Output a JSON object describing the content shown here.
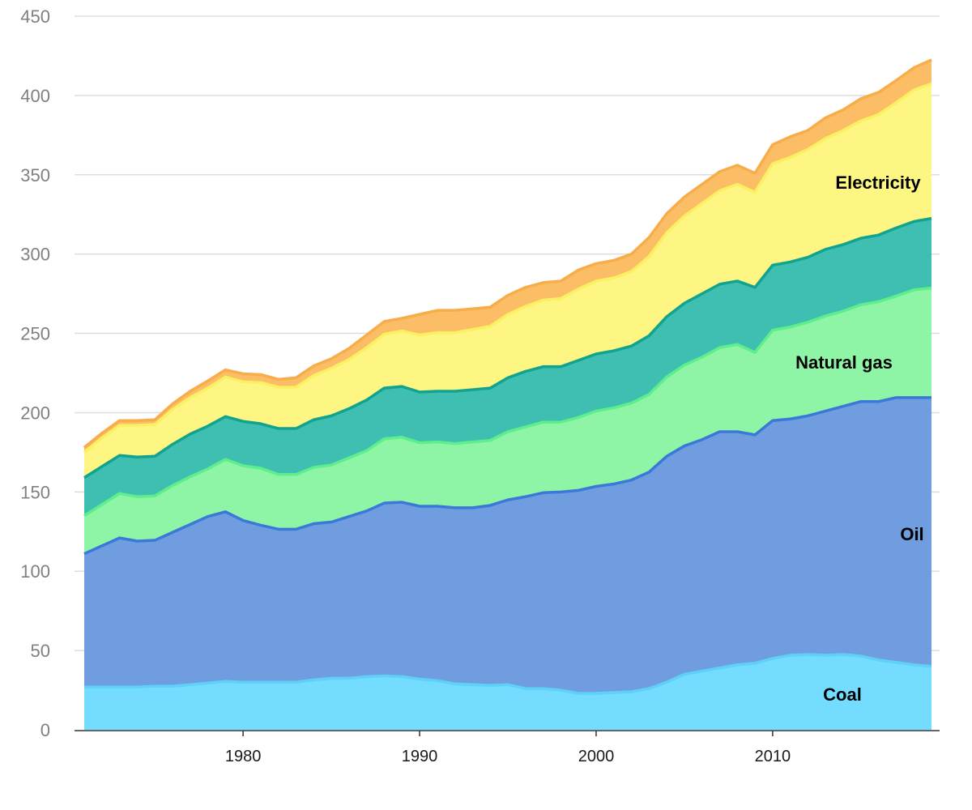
{
  "chart_data": {
    "type": "area",
    "stacked": true,
    "xlim": [
      1971,
      2019
    ],
    "ylim": [
      0,
      450
    ],
    "y_ticks": [
      0,
      50,
      100,
      150,
      200,
      250,
      300,
      350,
      400,
      450
    ],
    "x_ticks": [
      1980,
      1990,
      2000,
      2010
    ],
    "grid": "horizontal",
    "x": [
      1971,
      1972,
      1973,
      1974,
      1975,
      1976,
      1977,
      1978,
      1979,
      1980,
      1981,
      1982,
      1983,
      1984,
      1985,
      1986,
      1987,
      1988,
      1989,
      1990,
      1991,
      1992,
      1993,
      1994,
      1995,
      1996,
      1997,
      1998,
      1999,
      2000,
      2001,
      2002,
      2003,
      2004,
      2005,
      2006,
      2007,
      2008,
      2009,
      2010,
      2011,
      2012,
      2013,
      2014,
      2015,
      2016,
      2017,
      2018,
      2019
    ],
    "series": [
      {
        "name": "Coal",
        "fill": "#74dcfe",
        "stroke": "#5fd0f8",
        "values": [
          27,
          27,
          27,
          27,
          27.5,
          27.5,
          28.5,
          29.5,
          30.5,
          30,
          30,
          30,
          30,
          31.5,
          32.5,
          32.5,
          33.5,
          34,
          33.5,
          32,
          31,
          29,
          28.5,
          28,
          28.5,
          26,
          26,
          25,
          23,
          23,
          23.5,
          24,
          26,
          30,
          35,
          37,
          39,
          41,
          42,
          45,
          47,
          47.5,
          47,
          47.5,
          46.5,
          44,
          42.5,
          41,
          40
        ]
      },
      {
        "name": "Oil",
        "fill": "#6f9ddf",
        "stroke": "#3b79d8",
        "values": [
          84,
          89,
          94,
          92,
          92,
          97,
          101,
          105,
          107,
          102,
          99,
          96.5,
          96.5,
          98.5,
          98.5,
          102,
          104.5,
          109,
          110,
          109,
          110,
          111,
          111.5,
          113.5,
          116.5,
          121,
          123.5,
          125,
          128,
          130.5,
          131.5,
          133.5,
          136.5,
          142.5,
          144,
          146,
          149,
          147,
          144,
          150,
          149,
          150.5,
          154,
          156.5,
          160.5,
          163,
          167,
          168.5,
          169.5
        ]
      },
      {
        "name": "Natural gas",
        "fill": "#8ff5a6",
        "stroke": "#5eee8c",
        "values": [
          24,
          26,
          28,
          28,
          28,
          29.5,
          30,
          30,
          33,
          34.5,
          36,
          34.5,
          34.5,
          35.5,
          36,
          37,
          38,
          40.5,
          41,
          40,
          40.5,
          40.5,
          41.5,
          41,
          43,
          44,
          44.5,
          44,
          46,
          47.5,
          48,
          48.5,
          49,
          50,
          51,
          52,
          53,
          55,
          52,
          57,
          58,
          59,
          60,
          60,
          61,
          63,
          64,
          68,
          69
        ]
      },
      {
        "name": "",
        "fill": "#3ebfb2",
        "stroke": "#12a38e",
        "values": [
          24,
          24,
          24,
          25,
          25,
          26,
          27,
          27,
          27,
          28,
          28,
          29,
          29,
          30,
          31,
          31,
          32,
          32,
          32,
          32,
          32,
          33,
          33,
          33,
          34,
          35,
          35,
          35,
          36,
          36,
          36,
          36,
          37,
          38,
          39,
          40,
          40,
          40,
          41,
          41,
          41,
          41,
          42,
          42,
          42,
          42,
          43,
          43,
          44
        ]
      },
      {
        "name": "Electricity",
        "fill": "#fdf682",
        "stroke": "#fbef62",
        "values": [
          16,
          18,
          19,
          20,
          20,
          22,
          23,
          24,
          25,
          25,
          26,
          26,
          26,
          28,
          30,
          31,
          33,
          34,
          35,
          36,
          37,
          37,
          38,
          39,
          40,
          41,
          42,
          43,
          45,
          46,
          46,
          47,
          50,
          53,
          55,
          57,
          59,
          61,
          60,
          64,
          66,
          68,
          70,
          72,
          74,
          76,
          79,
          83,
          85
        ]
      },
      {
        "name": "",
        "fill": "#fbbd66",
        "stroke": "#f8ad4b",
        "values": [
          3,
          3,
          3,
          3,
          3,
          3.5,
          4,
          4.5,
          4.5,
          5,
          5,
          5,
          6,
          6,
          6,
          7,
          8,
          8,
          8,
          13,
          14,
          14,
          13,
          12,
          12,
          12,
          11,
          11,
          12,
          11,
          11,
          11,
          12,
          12,
          12,
          12,
          12,
          12,
          12,
          12,
          13,
          12,
          13,
          13,
          14,
          14,
          14,
          14,
          15
        ]
      }
    ]
  }
}
